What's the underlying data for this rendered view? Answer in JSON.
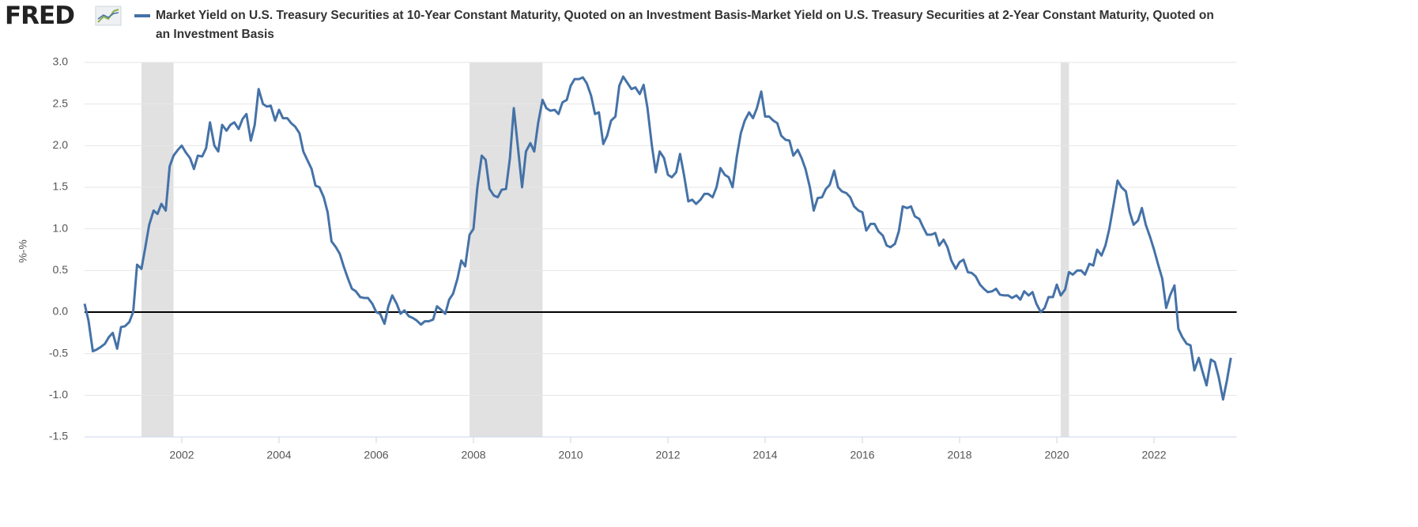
{
  "logo": "FRED",
  "chart_data": {
    "type": "line",
    "title": "Market Yield on U.S. Treasury Securities at 10-Year Constant Maturity, Quoted on an Investment Basis-Market Yield on U.S. Treasury Securities at 2-Year Constant Maturity, Quoted on an Investment Basis",
    "y_label": "%-%",
    "xlim": [
      2000,
      2023.7
    ],
    "xticks": [
      2002,
      2004,
      2006,
      2008,
      2010,
      2012,
      2014,
      2016,
      2018,
      2020,
      2022
    ],
    "ylim": [
      -1.5,
      3.0
    ],
    "yticks": [
      {
        "value": -1.5,
        "label": "-1.5"
      },
      {
        "value": -1.0,
        "label": "-1.0"
      },
      -0.5,
      {
        "value": 0,
        "label": "0.0"
      },
      0.5,
      {
        "value": 1,
        "label": "1.0"
      },
      1.5,
      {
        "value": 2,
        "label": "2.0"
      },
      2.5,
      {
        "value": 3,
        "label": "3.0"
      }
    ],
    "grid": true,
    "recessions": [
      [
        2001.17,
        2001.83
      ],
      [
        2007.92,
        2009.42
      ],
      [
        2020.08,
        2020.25
      ]
    ],
    "recession_color": "#e1e1e1",
    "x": [
      2000,
      2000.08,
      2000.17,
      2000.25,
      2000.33,
      2000.42,
      2000.5,
      2000.58,
      2000.67,
      2000.75,
      2000.83,
      2000.92,
      2001,
      2001.08,
      2001.17,
      2001.25,
      2001.33,
      2001.42,
      2001.5,
      2001.58,
      2001.67,
      2001.75,
      2001.83,
      2001.92,
      2002,
      2002.08,
      2002.17,
      2002.25,
      2002.33,
      2002.42,
      2002.5,
      2002.58,
      2002.67,
      2002.75,
      2002.83,
      2002.92,
      2003,
      2003.08,
      2003.17,
      2003.25,
      2003.33,
      2003.42,
      2003.5,
      2003.58,
      2003.67,
      2003.75,
      2003.83,
      2003.92,
      2004,
      2004.08,
      2004.17,
      2004.25,
      2004.33,
      2004.42,
      2004.5,
      2004.58,
      2004.67,
      2004.75,
      2004.83,
      2004.92,
      2005,
      2005.08,
      2005.17,
      2005.25,
      2005.33,
      2005.42,
      2005.5,
      2005.58,
      2005.67,
      2005.75,
      2005.83,
      2005.92,
      2006,
      2006.08,
      2006.17,
      2006.25,
      2006.33,
      2006.42,
      2006.5,
      2006.58,
      2006.67,
      2006.75,
      2006.83,
      2006.92,
      2007,
      2007.08,
      2007.17,
      2007.25,
      2007.33,
      2007.42,
      2007.5,
      2007.58,
      2007.67,
      2007.75,
      2007.83,
      2007.92,
      2008,
      2008.08,
      2008.17,
      2008.25,
      2008.33,
      2008.42,
      2008.5,
      2008.58,
      2008.67,
      2008.75,
      2008.83,
      2008.92,
      2009,
      2009.08,
      2009.17,
      2009.25,
      2009.33,
      2009.42,
      2009.5,
      2009.58,
      2009.67,
      2009.75,
      2009.83,
      2009.92,
      2010,
      2010.08,
      2010.17,
      2010.25,
      2010.33,
      2010.42,
      2010.5,
      2010.58,
      2010.67,
      2010.75,
      2010.83,
      2010.92,
      2011,
      2011.08,
      2011.17,
      2011.25,
      2011.33,
      2011.42,
      2011.5,
      2011.58,
      2011.67,
      2011.75,
      2011.83,
      2011.92,
      2012,
      2012.08,
      2012.17,
      2012.25,
      2012.33,
      2012.42,
      2012.5,
      2012.58,
      2012.67,
      2012.75,
      2012.83,
      2012.92,
      2013,
      2013.08,
      2013.17,
      2013.25,
      2013.33,
      2013.42,
      2013.5,
      2013.58,
      2013.67,
      2013.75,
      2013.83,
      2013.92,
      2014,
      2014.08,
      2014.17,
      2014.25,
      2014.33,
      2014.42,
      2014.5,
      2014.58,
      2014.67,
      2014.75,
      2014.83,
      2014.92,
      2015,
      2015.08,
      2015.17,
      2015.25,
      2015.33,
      2015.42,
      2015.5,
      2015.58,
      2015.67,
      2015.75,
      2015.83,
      2015.92,
      2016,
      2016.08,
      2016.17,
      2016.25,
      2016.33,
      2016.42,
      2016.5,
      2016.58,
      2016.67,
      2016.75,
      2016.83,
      2016.92,
      2017,
      2017.08,
      2017.17,
      2017.25,
      2017.33,
      2017.42,
      2017.5,
      2017.58,
      2017.67,
      2017.75,
      2017.83,
      2017.92,
      2018,
      2018.08,
      2018.17,
      2018.25,
      2018.33,
      2018.42,
      2018.5,
      2018.58,
      2018.67,
      2018.75,
      2018.83,
      2018.92,
      2019,
      2019.08,
      2019.17,
      2019.25,
      2019.33,
      2019.42,
      2019.5,
      2019.58,
      2019.67,
      2019.75,
      2019.83,
      2019.92,
      2020,
      2020.08,
      2020.17,
      2020.25,
      2020.33,
      2020.42,
      2020.5,
      2020.58,
      2020.67,
      2020.75,
      2020.83,
      2020.92,
      2021,
      2021.08,
      2021.17,
      2021.25,
      2021.33,
      2021.42,
      2021.5,
      2021.58,
      2021.67,
      2021.75,
      2021.83,
      2021.92,
      2022,
      2022.08,
      2022.17,
      2022.25,
      2022.33,
      2022.42,
      2022.5,
      2022.58,
      2022.67,
      2022.75,
      2022.83,
      2022.92,
      2023,
      2023.08,
      2023.17,
      2023.25,
      2023.33,
      2023.42,
      2023.5,
      2023.58
    ],
    "series": [
      {
        "name": "Market Yield on U.S. Treasury Securities at 10-Year Constant Maturity, Quoted on an Investment Basis-Market Yield on U.S. Treasury Securities at 2-Year Constant Maturity, Quoted on an Investment Basis",
        "color": "#4572a7",
        "values": [
          0.1,
          -0.1,
          -0.47,
          -0.45,
          -0.42,
          -0.38,
          -0.3,
          -0.25,
          -0.44,
          -0.18,
          -0.17,
          -0.12,
          0.0,
          0.57,
          0.52,
          0.78,
          1.05,
          1.22,
          1.18,
          1.3,
          1.22,
          1.75,
          1.88,
          1.95,
          2.0,
          1.92,
          1.85,
          1.72,
          1.88,
          1.87,
          1.97,
          2.28,
          2.0,
          1.93,
          2.25,
          2.18,
          2.25,
          2.28,
          2.2,
          2.32,
          2.38,
          2.06,
          2.25,
          2.68,
          2.5,
          2.47,
          2.48,
          2.3,
          2.43,
          2.33,
          2.33,
          2.27,
          2.23,
          2.15,
          1.93,
          1.83,
          1.72,
          1.52,
          1.5,
          1.38,
          1.2,
          0.85,
          0.78,
          0.7,
          0.55,
          0.4,
          0.28,
          0.25,
          0.18,
          0.17,
          0.17,
          0.1,
          0.0,
          -0.02,
          -0.14,
          0.07,
          0.2,
          0.1,
          -0.02,
          0.02,
          -0.05,
          -0.07,
          -0.1,
          -0.15,
          -0.11,
          -0.11,
          -0.09,
          0.07,
          0.03,
          -0.02,
          0.15,
          0.22,
          0.4,
          0.62,
          0.55,
          0.93,
          1.0,
          1.5,
          1.88,
          1.83,
          1.48,
          1.4,
          1.38,
          1.47,
          1.48,
          1.85,
          2.45,
          1.95,
          1.5,
          1.93,
          2.03,
          1.93,
          2.27,
          2.55,
          2.45,
          2.42,
          2.43,
          2.38,
          2.52,
          2.55,
          2.72,
          2.8,
          2.8,
          2.82,
          2.75,
          2.6,
          2.38,
          2.4,
          2.02,
          2.12,
          2.3,
          2.35,
          2.72,
          2.83,
          2.75,
          2.68,
          2.7,
          2.62,
          2.73,
          2.45,
          2.0,
          1.68,
          1.93,
          1.85,
          1.65,
          1.62,
          1.68,
          1.9,
          1.65,
          1.33,
          1.35,
          1.3,
          1.35,
          1.42,
          1.42,
          1.38,
          1.5,
          1.73,
          1.65,
          1.62,
          1.5,
          1.88,
          2.15,
          2.3,
          2.4,
          2.33,
          2.45,
          2.65,
          2.35,
          2.35,
          2.3,
          2.27,
          2.12,
          2.07,
          2.06,
          1.88,
          1.95,
          1.85,
          1.72,
          1.5,
          1.22,
          1.37,
          1.38,
          1.48,
          1.53,
          1.7,
          1.5,
          1.45,
          1.43,
          1.38,
          1.27,
          1.22,
          1.2,
          0.98,
          1.06,
          1.06,
          0.97,
          0.92,
          0.8,
          0.78,
          0.82,
          0.97,
          1.27,
          1.25,
          1.27,
          1.15,
          1.12,
          1.02,
          0.93,
          0.93,
          0.95,
          0.8,
          0.87,
          0.78,
          0.62,
          0.52,
          0.6,
          0.63,
          0.48,
          0.47,
          0.43,
          0.33,
          0.28,
          0.24,
          0.25,
          0.28,
          0.21,
          0.2,
          0.2,
          0.17,
          0.2,
          0.15,
          0.25,
          0.2,
          0.24,
          0.1,
          0.0,
          0.05,
          0.18,
          0.18,
          0.33,
          0.2,
          0.27,
          0.48,
          0.45,
          0.5,
          0.5,
          0.45,
          0.58,
          0.56,
          0.75,
          0.68,
          0.8,
          1.0,
          1.3,
          1.58,
          1.5,
          1.45,
          1.2,
          1.05,
          1.1,
          1.25,
          1.05,
          0.9,
          0.75,
          0.58,
          0.4,
          0.05,
          0.2,
          0.32,
          -0.2,
          -0.3,
          -0.38,
          -0.4,
          -0.7,
          -0.55,
          -0.72,
          -0.88,
          -0.57,
          -0.6,
          -0.78,
          -1.05,
          -0.82,
          -0.55
        ]
      }
    ]
  }
}
